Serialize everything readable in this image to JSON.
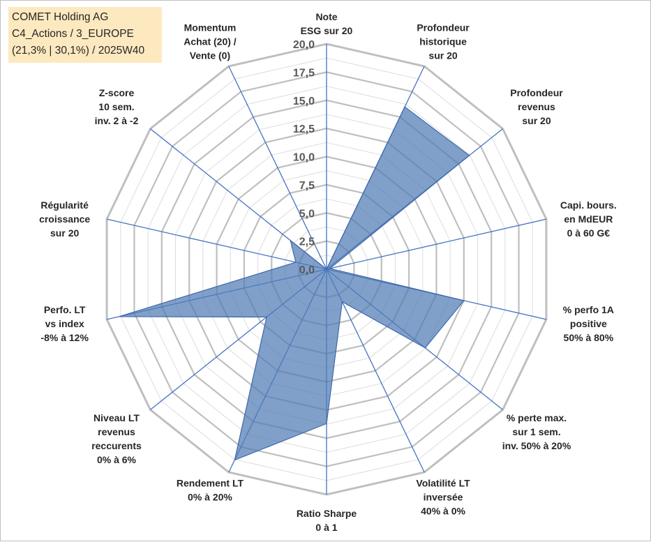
{
  "title_box": {
    "line1": "COMET Holding AG",
    "line2": "C4_Actions / 3_EUROPE",
    "line3": "(21,3% | 30,1%) / 2025W40"
  },
  "chart_data": {
    "type": "radar",
    "rmax": 20,
    "ticks": [
      "0,0",
      "2,5",
      "5,0",
      "7,5",
      "10,0",
      "12,5",
      "15,0",
      "17,5",
      "20,0"
    ],
    "tick_values": [
      0,
      2.5,
      5,
      7.5,
      10,
      12.5,
      15,
      17.5,
      20
    ],
    "categories": [
      [
        "Note",
        "ESG sur 20"
      ],
      [
        "Profondeur",
        "historique",
        "sur 20"
      ],
      [
        "Profondeur",
        "revenus",
        "sur 20"
      ],
      [
        "Capi. bours.",
        "en MdEUR",
        "0 à 60 G€"
      ],
      [
        "% perfo 1A",
        "positive",
        "50% à 80%"
      ],
      [
        "% perte max.",
        "sur 1 sem.",
        "inv. 50% à 20%"
      ],
      [
        "Volatilité LT",
        "inversée",
        "40% à 0%"
      ],
      [
        "Ratio Sharpe",
        "0 à 1"
      ],
      [
        "Rendement LT",
        "0% à 20%"
      ],
      [
        "Niveau LT",
        "revenus",
        "reccurents",
        "0% à 6%"
      ],
      [
        "Perfo. LT",
        "vs index",
        "-8% à 12%"
      ],
      [
        "Régularité",
        "croissance",
        "sur 20"
      ],
      [
        "Z-score",
        "10 sem.",
        "inv. 2 à -2"
      ],
      [
        "Momentum",
        "Achat (20) /",
        "Vente (0)"
      ]
    ],
    "series": [
      {
        "values": [
          0,
          16,
          16.2,
          0.3,
          12.5,
          11.2,
          3.2,
          13.7,
          18.8,
          6.8,
          18.9,
          2.8,
          4.1,
          0
        ]
      }
    ],
    "colors": {
      "fill": "#4f7bb5",
      "fill_opacity": 0.72,
      "stroke": "#3f67a8",
      "spoke": "#4472c4",
      "ring_major": "#bfbfbf",
      "ring_minor": "#dcdcdc"
    }
  }
}
